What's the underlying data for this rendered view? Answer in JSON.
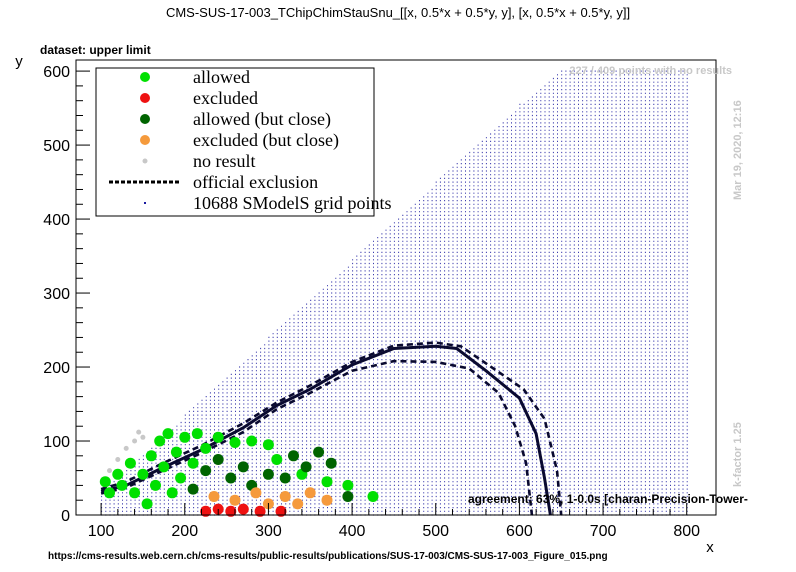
{
  "chart_data": {
    "type": "scatter",
    "title": "CMS-SUS-17-003_TChipChimStauSnu_[[x, 0.5*x + 0.5*y, y], [x, 0.5*x + 0.5*y, y]]",
    "subtitle": "dataset: upper limit",
    "xlabel": "x",
    "ylabel": "y",
    "xlim": [
      70,
      835
    ],
    "ylim": [
      0,
      615
    ],
    "x_ticks": [
      100,
      200,
      300,
      400,
      500,
      600,
      700,
      800
    ],
    "y_ticks": [
      0,
      100,
      200,
      300,
      400,
      500,
      600
    ],
    "grid": false,
    "legend_position": "top-left",
    "legend": [
      {
        "label": "allowed",
        "color": "#00e000",
        "marker": "circle"
      },
      {
        "label": "excluded",
        "color": "#ee1111",
        "marker": "circle"
      },
      {
        "label": "allowed (but close)",
        "color": "#006400",
        "marker": "circle"
      },
      {
        "label": "excluded (but close)",
        "color": "#f59a3c",
        "marker": "circle"
      },
      {
        "label": "no result",
        "color": "#c8c8c8",
        "marker": "circle"
      },
      {
        "label": "official exclusion",
        "color": "#000000",
        "marker": "dashed-line"
      },
      {
        "label": "10688 SModelS grid points",
        "color": "#1a1aa0",
        "marker": "dot"
      }
    ],
    "annotations": {
      "no_results": "227 / 409 points with no results",
      "timestamp": "Mar 19, 2020, 12:16",
      "kfactor": "k-factor 1.25",
      "agreement": "agreement: 63%, 1-0.0s [charan-Precision-Tower-",
      "url": "https://cms-results.web.cern.ch/cms-results/public-results/publications/SUS-17-003/CMS-SUS-17-003_Figure_015.png"
    },
    "grid_region": {
      "x_min": 100,
      "x_max": 800,
      "y_upper": [
        [
          100,
          30
        ],
        [
          600,
          555
        ],
        [
          650,
          600
        ],
        [
          800,
          600
        ]
      ]
    },
    "series": [
      {
        "name": "official exclusion",
        "style": "solid",
        "points": [
          [
            100,
            32
          ],
          [
            130,
            40
          ],
          [
            170,
            62
          ],
          [
            220,
            88
          ],
          [
            270,
            118
          ],
          [
            310,
            148
          ],
          [
            350,
            170
          ],
          [
            400,
            203
          ],
          [
            450,
            225
          ],
          [
            500,
            228
          ],
          [
            525,
            225
          ],
          [
            560,
            195
          ],
          [
            600,
            158
          ],
          [
            620,
            110
          ],
          [
            630,
            50
          ],
          [
            637,
            0
          ]
        ]
      },
      {
        "name": "official exclusion +1σ",
        "style": "dashed",
        "points": [
          [
            100,
            35
          ],
          [
            130,
            45
          ],
          [
            170,
            68
          ],
          [
            220,
            94
          ],
          [
            270,
            124
          ],
          [
            310,
            152
          ],
          [
            350,
            175
          ],
          [
            400,
            207
          ],
          [
            450,
            229
          ],
          [
            500,
            233
          ],
          [
            530,
            228
          ],
          [
            560,
            205
          ],
          [
            605,
            170
          ],
          [
            630,
            130
          ],
          [
            645,
            60
          ],
          [
            650,
            0
          ]
        ]
      },
      {
        "name": "official exclusion -1σ",
        "style": "dashed",
        "points": [
          [
            100,
            29
          ],
          [
            130,
            37
          ],
          [
            170,
            58
          ],
          [
            220,
            84
          ],
          [
            270,
            112
          ],
          [
            310,
            143
          ],
          [
            350,
            165
          ],
          [
            400,
            195
          ],
          [
            450,
            208
          ],
          [
            500,
            207
          ],
          [
            540,
            198
          ],
          [
            575,
            165
          ],
          [
            595,
            120
          ],
          [
            608,
            70
          ],
          [
            615,
            0
          ]
        ]
      }
    ],
    "points": [
      {
        "x": 110,
        "y": 60,
        "status": "no result"
      },
      {
        "x": 120,
        "y": 75,
        "status": "no result"
      },
      {
        "x": 130,
        "y": 90,
        "status": "no result"
      },
      {
        "x": 140,
        "y": 100,
        "status": "no result"
      },
      {
        "x": 150,
        "y": 105,
        "status": "no result"
      },
      {
        "x": 145,
        "y": 112,
        "status": "no result"
      },
      {
        "x": 105,
        "y": 45,
        "status": "allowed"
      },
      {
        "x": 110,
        "y": 30,
        "status": "allowed"
      },
      {
        "x": 120,
        "y": 55,
        "status": "allowed"
      },
      {
        "x": 125,
        "y": 40,
        "status": "allowed"
      },
      {
        "x": 135,
        "y": 70,
        "status": "allowed"
      },
      {
        "x": 140,
        "y": 30,
        "status": "allowed"
      },
      {
        "x": 150,
        "y": 55,
        "status": "allowed"
      },
      {
        "x": 155,
        "y": 15,
        "status": "allowed"
      },
      {
        "x": 160,
        "y": 80,
        "status": "allowed"
      },
      {
        "x": 165,
        "y": 40,
        "status": "allowed"
      },
      {
        "x": 170,
        "y": 100,
        "status": "allowed"
      },
      {
        "x": 175,
        "y": 65,
        "status": "allowed"
      },
      {
        "x": 180,
        "y": 110,
        "status": "allowed"
      },
      {
        "x": 185,
        "y": 30,
        "status": "allowed"
      },
      {
        "x": 190,
        "y": 85,
        "status": "allowed"
      },
      {
        "x": 195,
        "y": 50,
        "status": "allowed"
      },
      {
        "x": 200,
        "y": 105,
        "status": "allowed"
      },
      {
        "x": 210,
        "y": 70,
        "status": "allowed"
      },
      {
        "x": 215,
        "y": 110,
        "status": "allowed"
      },
      {
        "x": 225,
        "y": 90,
        "status": "allowed"
      },
      {
        "x": 240,
        "y": 105,
        "status": "allowed"
      },
      {
        "x": 260,
        "y": 98,
        "status": "allowed"
      },
      {
        "x": 280,
        "y": 100,
        "status": "allowed"
      },
      {
        "x": 300,
        "y": 95,
        "status": "allowed"
      },
      {
        "x": 310,
        "y": 75,
        "status": "allowed"
      },
      {
        "x": 340,
        "y": 55,
        "status": "allowed"
      },
      {
        "x": 370,
        "y": 45,
        "status": "allowed"
      },
      {
        "x": 395,
        "y": 40,
        "status": "allowed"
      },
      {
        "x": 425,
        "y": 25,
        "status": "allowed"
      },
      {
        "x": 210,
        "y": 35,
        "status": "allowed (but close)"
      },
      {
        "x": 225,
        "y": 60,
        "status": "allowed (but close)"
      },
      {
        "x": 240,
        "y": 75,
        "status": "allowed (but close)"
      },
      {
        "x": 255,
        "y": 50,
        "status": "allowed (but close)"
      },
      {
        "x": 270,
        "y": 65,
        "status": "allowed (but close)"
      },
      {
        "x": 280,
        "y": 40,
        "status": "allowed (but close)"
      },
      {
        "x": 300,
        "y": 55,
        "status": "allowed (but close)"
      },
      {
        "x": 320,
        "y": 50,
        "status": "allowed (but close)"
      },
      {
        "x": 330,
        "y": 80,
        "status": "allowed (but close)"
      },
      {
        "x": 345,
        "y": 65,
        "status": "allowed (but close)"
      },
      {
        "x": 360,
        "y": 85,
        "status": "allowed (but close)"
      },
      {
        "x": 375,
        "y": 70,
        "status": "allowed (but close)"
      },
      {
        "x": 395,
        "y": 25,
        "status": "allowed (but close)"
      },
      {
        "x": 235,
        "y": 25,
        "status": "excluded (but close)"
      },
      {
        "x": 260,
        "y": 20,
        "status": "excluded (but close)"
      },
      {
        "x": 285,
        "y": 30,
        "status": "excluded (but close)"
      },
      {
        "x": 300,
        "y": 15,
        "status": "excluded (but close)"
      },
      {
        "x": 320,
        "y": 25,
        "status": "excluded (but close)"
      },
      {
        "x": 335,
        "y": 15,
        "status": "excluded (but close)"
      },
      {
        "x": 350,
        "y": 30,
        "status": "excluded (but close)"
      },
      {
        "x": 370,
        "y": 20,
        "status": "excluded (but close)"
      },
      {
        "x": 225,
        "y": 5,
        "status": "excluded"
      },
      {
        "x": 240,
        "y": 8,
        "status": "excluded"
      },
      {
        "x": 255,
        "y": 5,
        "status": "excluded"
      },
      {
        "x": 270,
        "y": 8,
        "status": "excluded"
      },
      {
        "x": 290,
        "y": 5,
        "status": "excluded"
      },
      {
        "x": 315,
        "y": 5,
        "status": "excluded"
      }
    ]
  }
}
